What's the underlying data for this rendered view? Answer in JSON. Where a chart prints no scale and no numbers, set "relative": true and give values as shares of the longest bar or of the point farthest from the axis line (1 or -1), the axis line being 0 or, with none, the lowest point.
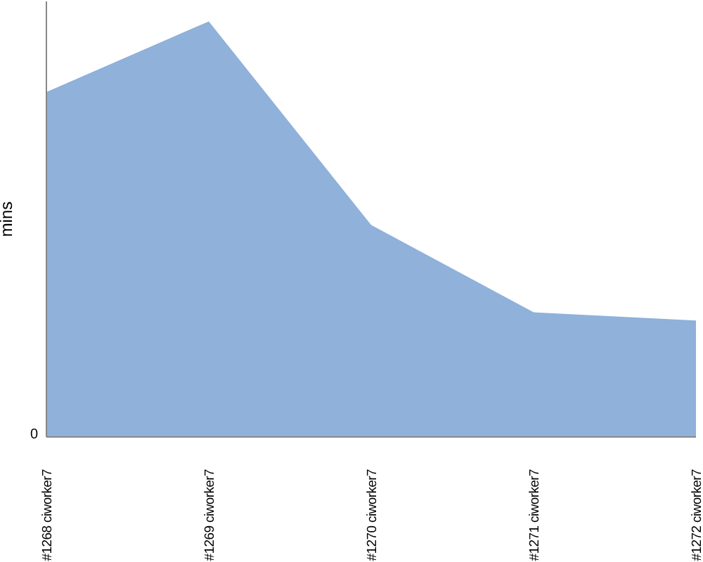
{
  "chart_data": {
    "type": "area",
    "ylabel": "mins",
    "relative": true,
    "categories": [
      "#1268 ciworker7",
      "#1269 ciworker7",
      "#1270 ciworker7",
      "#1271 ciworker7",
      "#1272 ciworker7"
    ],
    "values": [
      0.83,
      1,
      0.51,
      0.3,
      0.28
    ],
    "color": "#8fb1da",
    "annotations": [
      "0"
    ]
  }
}
